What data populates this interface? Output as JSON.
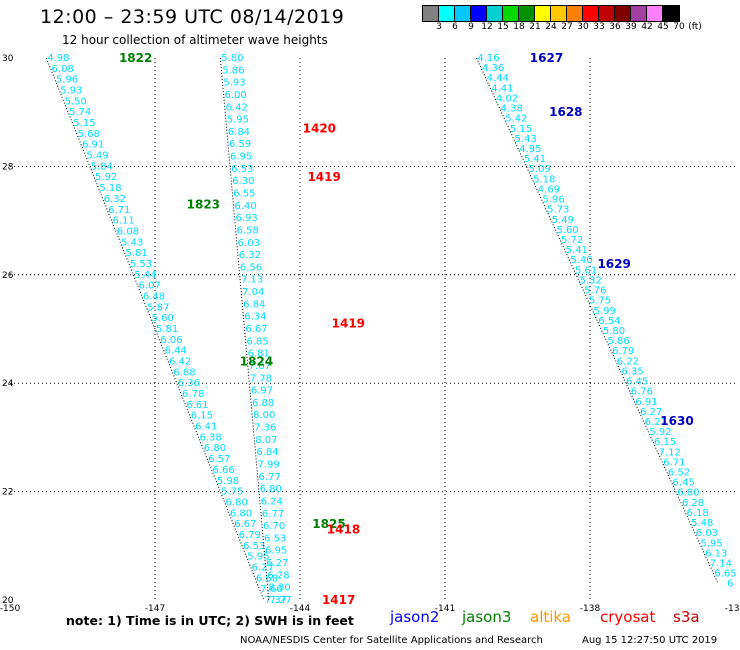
{
  "header": {
    "title": "12:00  –  23:59 UTC 08/14/2019",
    "subtitle": "12 hour collection of altimeter wave heights"
  },
  "legend": {
    "colors": [
      "#808080",
      "#00ffff",
      "#00c8ff",
      "#0000ff",
      "#00d0d0",
      "#00d800",
      "#009000",
      "#ffff00",
      "#ffc800",
      "#ff8000",
      "#ff0000",
      "#c00000",
      "#800000",
      "#a040a0",
      "#ff80ff",
      "#000000"
    ],
    "labels": [
      "3",
      "6",
      "9",
      "12",
      "15",
      "18",
      "21",
      "24",
      "27",
      "30",
      "33",
      "36",
      "39",
      "42",
      "45",
      "70",
      "(ft)"
    ]
  },
  "map": {
    "lon_ticks": [
      "-150",
      "-147",
      "-144",
      "-141",
      "-138",
      "-135"
    ],
    "lat_ticks": [
      "30",
      "28",
      "26",
      "24",
      "22",
      "20"
    ],
    "lon_range": [
      -150,
      -135
    ],
    "lat_range": [
      20,
      30
    ],
    "grid": "dotted"
  },
  "passes": [
    {
      "name": "jason3-west",
      "color": "#00ddff",
      "start": [
        -149.0,
        30.0
      ],
      "end": [
        -144.5,
        20.0
      ],
      "values": [
        "4.98",
        "6.08",
        "5.96",
        "5.93",
        "5.50",
        "5.74",
        "5.15",
        "5.68",
        "6.91",
        "5.49",
        "5.84",
        "5.92",
        "5.18",
        "6.32",
        "6.71",
        "6.11",
        "6.08",
        "5.43",
        "5.81",
        "5.53",
        "5.44",
        "6.07",
        "6.48",
        "5.87",
        "5.60",
        "5.81",
        "6.06",
        "6.44",
        "6.42",
        "6.88",
        "6.36",
        "6.78",
        "6.61",
        "6.15",
        "6.41",
        "6.38",
        "6.80",
        "6.57",
        "6.66",
        "5.98",
        "5.75",
        "6.80",
        "6.80",
        "6.67",
        "6.79",
        "6.53",
        "5.95",
        "6.27",
        "6.68",
        "7.66",
        "7.37"
      ]
    },
    {
      "name": "cryosat-middle",
      "color": "#00ddff",
      "start": [
        -145.4,
        30.0
      ],
      "end": [
        -144.4,
        20.0
      ],
      "values": [
        "5.80",
        "5.86",
        "5.93",
        "6.00",
        "6.42",
        "5.95",
        "6.84",
        "6.59",
        "6.95",
        "6.53",
        "6.30",
        "6.55",
        "6.40",
        "6.93",
        "6.58",
        "6.03",
        "6.32",
        "6.56",
        "7.13",
        "7.04",
        "6.84",
        "6.34",
        "6.67",
        "6.85",
        "6.81",
        "7.67",
        "7.78",
        "6.97",
        "6.88",
        "8.00",
        "7.36",
        "8.07",
        "6.84",
        "7.99",
        "6.77",
        "6.80",
        "6.24",
        "6.77",
        "6.70",
        "6.53",
        "6.95",
        "6.27",
        "6.28",
        "8.30",
        "7.27"
      ]
    },
    {
      "name": "jason2-east",
      "color": "#00ddff",
      "start": [
        -140.1,
        30.0
      ],
      "end": [
        -135.1,
        20.3
      ],
      "values": [
        "4.16",
        "4.36",
        "4.44",
        "4.41",
        "4.02",
        "4.38",
        "5.42",
        "5.15",
        "5.43",
        "4.95",
        "5.41",
        "5.09",
        "5.18",
        "4.69",
        "5.96",
        "5.73",
        "5.49",
        "5.60",
        "5.72",
        "5.41",
        "5.40",
        "5.61",
        "5.32",
        "5.76",
        "5.75",
        "5.99",
        "6.54",
        "5.80",
        "5.86",
        "6.79",
        "6.22",
        "6.35",
        "6.45",
        "6.76",
        "6.91",
        "6.27",
        "6.27",
        "5.92",
        "6.15",
        "7.12",
        "6.71",
        "6.52",
        "6.45",
        "6.80",
        "6.28",
        "6.18",
        "5.48",
        "6.03",
        "5.95",
        "6.13",
        "7.14",
        "6.65",
        "6"
      ]
    }
  ],
  "time_labels": [
    {
      "text": "1822",
      "lon": -147.4,
      "lat": 30.0,
      "color": "#008000"
    },
    {
      "text": "1823",
      "lon": -146.0,
      "lat": 27.3,
      "color": "#008000"
    },
    {
      "text": "1824",
      "lon": -144.9,
      "lat": 24.4,
      "color": "#008000"
    },
    {
      "text": "1825",
      "lon": -143.4,
      "lat": 21.4,
      "color": "#008000"
    },
    {
      "text": "1420",
      "lon": -143.6,
      "lat": 28.7,
      "color": "#ff0000"
    },
    {
      "text": "1419",
      "lon": -143.5,
      "lat": 27.8,
      "color": "#ff0000"
    },
    {
      "text": "1419",
      "lon": -143.0,
      "lat": 25.1,
      "color": "#ff0000"
    },
    {
      "text": "1418",
      "lon": -143.1,
      "lat": 21.3,
      "color": "#ff0000"
    },
    {
      "text": "1417",
      "lon": -143.2,
      "lat": 20.0,
      "color": "#ff0000"
    },
    {
      "text": "1627",
      "lon": -138.9,
      "lat": 30.0,
      "color": "#0000c0"
    },
    {
      "text": "1628",
      "lon": -138.5,
      "lat": 29.0,
      "color": "#0000c0"
    },
    {
      "text": "1629",
      "lon": -137.5,
      "lat": 26.2,
      "color": "#0000c0"
    },
    {
      "text": "1630",
      "lon": -136.2,
      "lat": 23.3,
      "color": "#0000c0"
    }
  ],
  "footer": {
    "note": "note:  1) Time is in UTC;  2) SWH is in feet",
    "satellites": [
      {
        "name": "jason2",
        "color": "#0000ff"
      },
      {
        "name": "jason3",
        "color": "#008000"
      },
      {
        "name": "altika",
        "color": "#ff9900"
      },
      {
        "name": "cryosat",
        "color": "#ff0000"
      },
      {
        "name": "s3a",
        "color": "#cc0000"
      }
    ],
    "credit": "NOAA/NESDIS Center for Satellite Applications and Research",
    "timestamp": "Aug 15 12:27:50 UTC 2019"
  }
}
